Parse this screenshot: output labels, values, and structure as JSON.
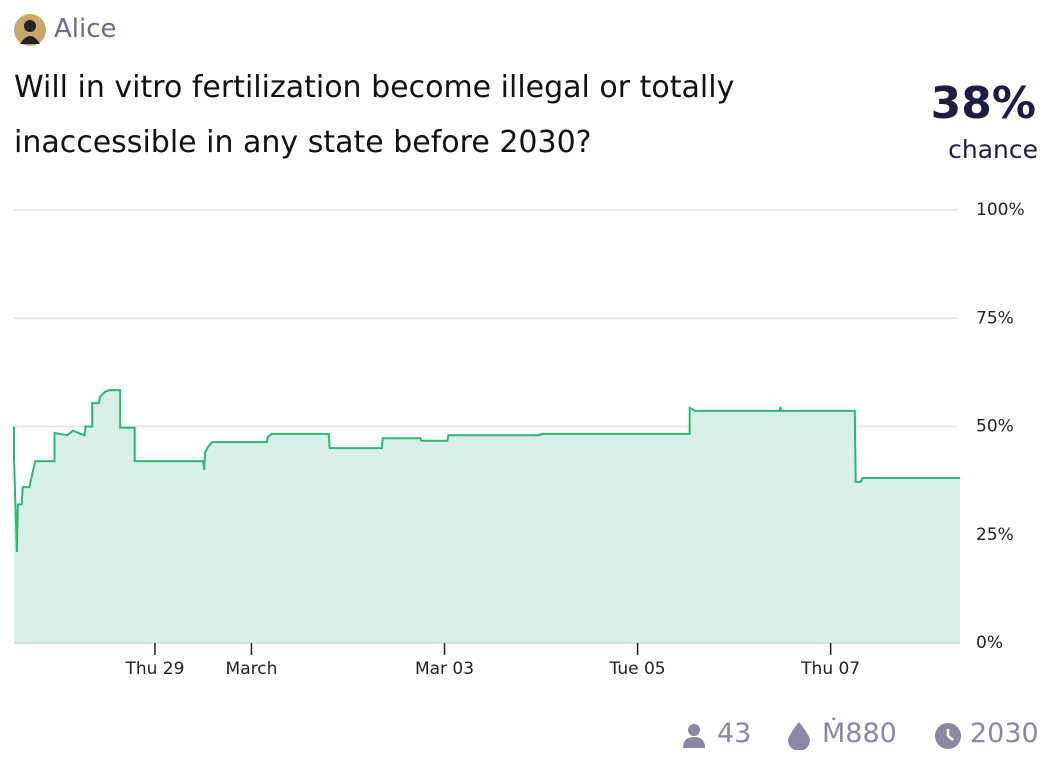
{
  "header": {
    "author": "Alice",
    "title": "Will in vitro fertilization become illegal or totally inaccessible in any state before 2030?",
    "probability": "38%",
    "probability_label": "chance"
  },
  "chart_data": {
    "type": "area",
    "color": "#2fb47c",
    "fill": "#d8f0e6",
    "grid": true,
    "x": [
      58.54,
      58.54,
      58.55,
      58.57,
      58.58,
      58.62,
      58.63,
      58.7,
      58.74,
      58.76,
      58.96,
      58.96,
      59.09,
      59.15,
      59.27,
      59.28,
      59.35,
      59.35,
      59.42,
      59.43,
      59.48,
      59.53,
      59.64,
      59.64,
      59.79,
      59.79,
      60.5,
      60.51,
      60.52,
      60.55,
      60.59,
      61.16,
      61.17,
      61.21,
      61.8,
      61.81,
      62.35,
      62.36,
      62.75,
      62.76,
      63.03,
      63.04,
      63.99,
      64.0,
      65.54,
      65.54,
      65.6,
      66.47,
      66.48,
      66.49,
      67.25,
      67.26,
      67.31,
      67.33,
      68.34
    ],
    "values": [
      50,
      42.7,
      35,
      21,
      32,
      32,
      36,
      36,
      40,
      42,
      42,
      48.5,
      48,
      49,
      48,
      50,
      50,
      55.4,
      55.4,
      56.8,
      58,
      58.4,
      58.4,
      49.7,
      49.7,
      42,
      42,
      40,
      44,
      45.3,
      46.4,
      46.4,
      47.6,
      48.3,
      48.3,
      45,
      45,
      47.3,
      47.3,
      46.7,
      46.7,
      48,
      48,
      48.3,
      48.3,
      54.3,
      53.6,
      53.6,
      54.5,
      53.6,
      53.6,
      37.2,
      37.2,
      38.1,
      38.1
    ],
    "xlim": [
      58.54,
      68.34
    ],
    "xticks": [
      {
        "value": 60,
        "label": "Thu 29"
      },
      {
        "value": 61,
        "label": "March"
      },
      {
        "value": 63,
        "label": "Mar 03"
      },
      {
        "value": 65,
        "label": "Tue 05"
      },
      {
        "value": 67,
        "label": "Thu 07"
      }
    ],
    "ylim": [
      0,
      100
    ],
    "yticks": [
      {
        "value": 0,
        "label": "0%"
      },
      {
        "value": 25,
        "label": "25%"
      },
      {
        "value": 50,
        "label": "50%"
      },
      {
        "value": 75,
        "label": "75%"
      },
      {
        "value": 100,
        "label": "100%"
      }
    ]
  },
  "footer": {
    "traders": "43",
    "volume": "Ṁ880",
    "close": "2030"
  }
}
